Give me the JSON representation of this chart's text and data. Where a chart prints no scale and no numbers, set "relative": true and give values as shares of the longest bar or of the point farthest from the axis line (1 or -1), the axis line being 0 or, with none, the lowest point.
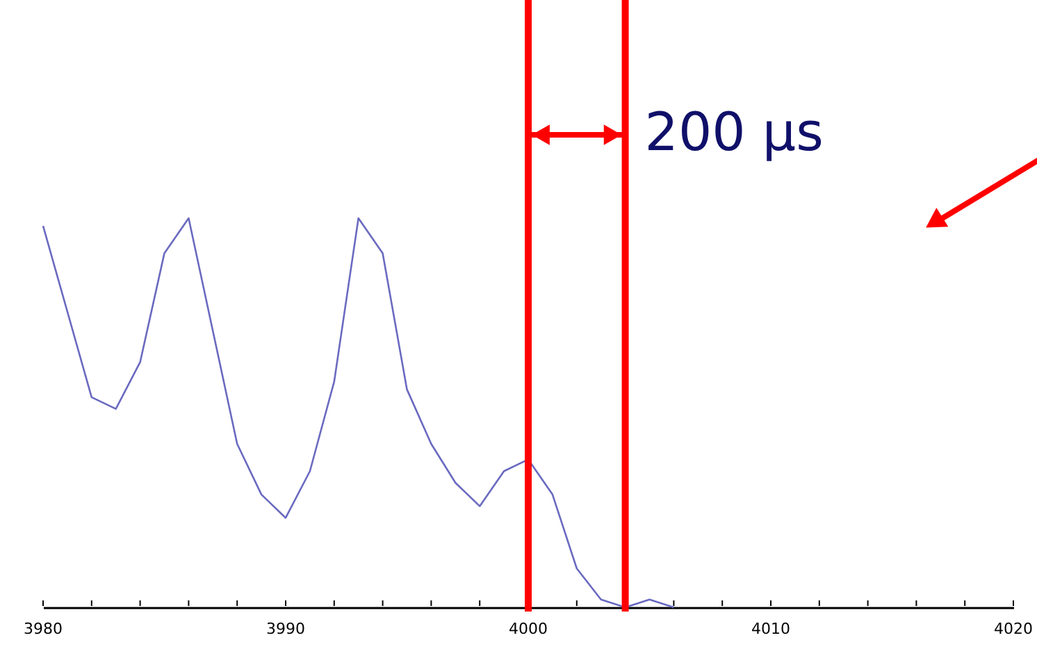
{
  "chart_data": {
    "type": "line",
    "relative": true,
    "x": [
      3980,
      3982,
      3983,
      3984,
      3985,
      3986,
      3988,
      3989,
      3990,
      3991,
      3992,
      3993,
      3994,
      3995,
      3996,
      3997,
      3998,
      3999,
      4000,
      4001,
      4002,
      4003,
      4004,
      4005,
      4006
    ],
    "series": [
      {
        "color": "#6a6ac0",
        "values": [
          0.98,
          0.54,
          0.51,
          0.63,
          0.91,
          1.0,
          0.42,
          0.29,
          0.23,
          0.35,
          0.58,
          1.0,
          0.91,
          0.56,
          0.42,
          0.32,
          0.26,
          0.35,
          0.38,
          0.29,
          0.1,
          0.02,
          0,
          0.02,
          0
        ]
      }
    ],
    "xlim": [
      3980,
      4020
    ],
    "xticks": [
      3980,
      {
        "value": 3982,
        "label": null
      },
      {
        "value": 3984,
        "label": null
      },
      {
        "value": 3986,
        "label": null
      },
      {
        "value": 3988,
        "label": null
      },
      3990,
      {
        "value": 3992,
        "label": null
      },
      {
        "value": 3994,
        "label": null
      },
      {
        "value": 3996,
        "label": null
      },
      {
        "value": 3998,
        "label": null
      },
      4000,
      {
        "value": 4002,
        "label": null
      },
      {
        "value": 4004,
        "label": null
      },
      {
        "value": 4006,
        "label": null
      },
      {
        "value": 4008,
        "label": null
      },
      4010,
      {
        "value": 4012,
        "label": null
      },
      {
        "value": 4014,
        "label": null
      },
      {
        "value": 4016,
        "label": null
      },
      {
        "value": 4018,
        "label": null
      },
      4020
    ],
    "ref_lines": [
      {
        "axis": "x",
        "value": 4000,
        "color": "#ff0000"
      },
      {
        "axis": "x",
        "value": 4004,
        "color": "#ff0000"
      }
    ],
    "annotations": [
      "200 μs"
    ],
    "line_style": "solid"
  }
}
